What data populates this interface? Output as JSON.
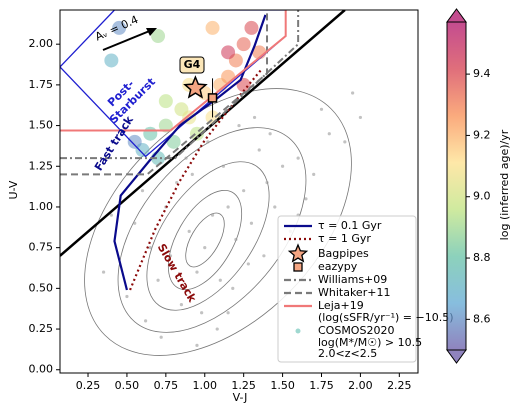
{
  "chart_data": {
    "type": "scatter",
    "xlabel": "V-J",
    "ylabel": "U-V",
    "xlim": [
      0.07,
      2.37
    ],
    "ylim": [
      -0.02,
      2.21
    ],
    "xticks": [
      0.25,
      {
        "value": 0.5,
        "label": "0.50"
      },
      0.75,
      {
        "value": 1,
        "label": "1.00"
      },
      1.25,
      {
        "value": 1.5,
        "label": "1.50"
      },
      1.75,
      {
        "value": 2,
        "label": "2.00"
      },
      2.25
    ],
    "yticks": [
      {
        "value": 0,
        "label": "0.00"
      },
      0.25,
      {
        "value": 0.5,
        "label": "0.50"
      },
      0.75,
      {
        "value": 1,
        "label": "1.00"
      },
      1.25,
      {
        "value": 1.5,
        "label": "1.50"
      },
      1.75,
      {
        "value": 2,
        "label": "2.00"
      }
    ],
    "cosmos": {
      "name": "COSMOS2020",
      "notes": [
        "log(M*/M☉) > 10.5",
        "2.0<z<2.5"
      ],
      "color": "#9a9a9a",
      "x": [
        0.35,
        0.5,
        0.62,
        0.7,
        0.78,
        0.85,
        0.9,
        0.95,
        1.0,
        1.05,
        1.1,
        1.15,
        1.2,
        1.25,
        1.3,
        1.4,
        1.5,
        1.6,
        1.7,
        1.8,
        1.9,
        2.0,
        0.55,
        0.65,
        0.75,
        0.82,
        0.92,
        0.98,
        1.08,
        1.18,
        1.28,
        1.35,
        1.45,
        1.55,
        1.65,
        0.4,
        0.6,
        0.88,
        1.02,
        1.12,
        1.22,
        1.32,
        1.42,
        1.75,
        1.95,
        0.72,
        0.95,
        1.15,
        1.38,
        1.6
      ],
      "y": [
        0.6,
        0.45,
        0.3,
        0.55,
        0.7,
        0.4,
        0.85,
        0.6,
        0.75,
        0.95,
        0.55,
        1.0,
        0.8,
        1.1,
        0.9,
        1.15,
        1.25,
        1.3,
        1.2,
        1.45,
        1.4,
        1.55,
        0.9,
        0.75,
        1.0,
        1.15,
        1.2,
        0.35,
        0.25,
        0.5,
        0.65,
        1.35,
        1.0,
        0.85,
        1.05,
        0.95,
        1.1,
        1.3,
        1.4,
        1.25,
        1.5,
        1.55,
        1.45,
        1.6,
        1.7,
        0.2,
        0.15,
        0.35,
        0.7,
        0.95
      ]
    },
    "age_points": {
      "x": [
        0.6,
        0.65,
        0.7,
        0.75,
        0.8,
        0.85,
        0.9,
        0.95,
        1.0,
        1.05,
        1.1,
        1.15,
        1.2,
        1.25,
        1.3,
        1.15,
        0.9,
        1.35,
        0.55,
        0.4,
        0.45,
        0.7,
        1.05,
        0.75,
        1.25
      ],
      "y": [
        1.35,
        1.45,
        1.3,
        1.5,
        1.4,
        1.6,
        1.55,
        1.45,
        1.7,
        1.55,
        1.75,
        1.8,
        1.9,
        2.0,
        2.1,
        1.95,
        1.75,
        1.95,
        1.4,
        1.9,
        2.1,
        2.05,
        2.1,
        1.65,
        1.75
      ],
      "c": [
        8.7,
        8.8,
        8.75,
        8.9,
        8.85,
        9.0,
        9.05,
        8.95,
        9.15,
        9.1,
        9.2,
        9.25,
        9.3,
        9.35,
        9.4,
        9.45,
        9.1,
        9.3,
        8.6,
        8.7,
        8.6,
        8.9,
        9.2,
        8.95,
        9.4
      ]
    },
    "region": {
      "color": "#1f1fd0",
      "x": [
        0.07,
        0.62,
        1.52,
        1.52,
        0.42,
        0.07
      ],
      "y": [
        1.86,
        1.31,
        2.05,
        2.21,
        2.21,
        1.86
      ]
    },
    "divider_line": {
      "color": "#000000",
      "x": [
        0.07,
        1.9
      ],
      "y": [
        0.7,
        2.21
      ]
    },
    "series": [
      {
        "name": "τ = 0.1 Gyr",
        "color": "#0a0a8c",
        "style": "solid",
        "x": [
          0.5,
          0.42,
          0.46,
          0.65,
          0.84,
          1.07,
          1.23,
          1.32,
          1.39
        ],
        "y": [
          0.49,
          0.79,
          1.07,
          1.29,
          1.5,
          1.66,
          1.78,
          1.99,
          2.18
        ]
      },
      {
        "name": "τ = 1 Gyr",
        "color": "#8b0a0a",
        "style": "dotted",
        "x": [
          0.52,
          0.68,
          0.84,
          1.0,
          1.23,
          1.36
        ],
        "y": [
          0.49,
          0.86,
          1.16,
          1.41,
          1.69,
          1.84
        ]
      },
      {
        "name": "Williams+09",
        "color": "#7a7a7a",
        "style": "dashdot",
        "x": [
          0.07,
          0.81,
          1.6,
          1.6
        ],
        "y": [
          1.3,
          1.3,
          2.0,
          2.21
        ]
      },
      {
        "name": "Whitaker+11",
        "color": "#7a7a7a",
        "style": "dashed",
        "x": [
          0.07,
          0.63,
          1.4,
          1.4
        ],
        "y": [
          1.2,
          1.2,
          1.82,
          2.21
        ]
      },
      {
        "name": "Leja+19",
        "note": "(log(sSFR/yr⁻¹) = −10.5)",
        "color": "#f07878",
        "style": "solid",
        "x": [
          0.07,
          0.78,
          1.52,
          1.52
        ],
        "y": [
          1.47,
          1.47,
          2.05,
          2.21
        ]
      }
    ],
    "bagpipes": {
      "name": "Bagpipes",
      "color": "#f4a582",
      "x": 0.94,
      "y": 1.73
    },
    "eazypy": {
      "name": "eazypy",
      "color": "#f4a582",
      "x": 1.05,
      "y": 1.67,
      "yerr": 0.12
    },
    "annotations": {
      "g4": "G4",
      "post": "Post-",
      "starburst": "Starburst",
      "fast": "Fast track",
      "slow": "Slow track",
      "av": "Aᵥ = 0.4"
    },
    "colorbar": {
      "label": "log (inferred age)/yr",
      "lim": [
        8.5,
        9.57
      ],
      "ticks": [
        8.6,
        8.8,
        {
          "value": 9,
          "label": "9.0"
        },
        9.2,
        9.4
      ],
      "colormap": [
        "#6a5aa8",
        "#5fa8d3",
        "#66c2a5",
        "#bfe37f",
        "#fee08b",
        "#f98e52",
        "#d53e4f",
        "#b0106a"
      ]
    }
  }
}
